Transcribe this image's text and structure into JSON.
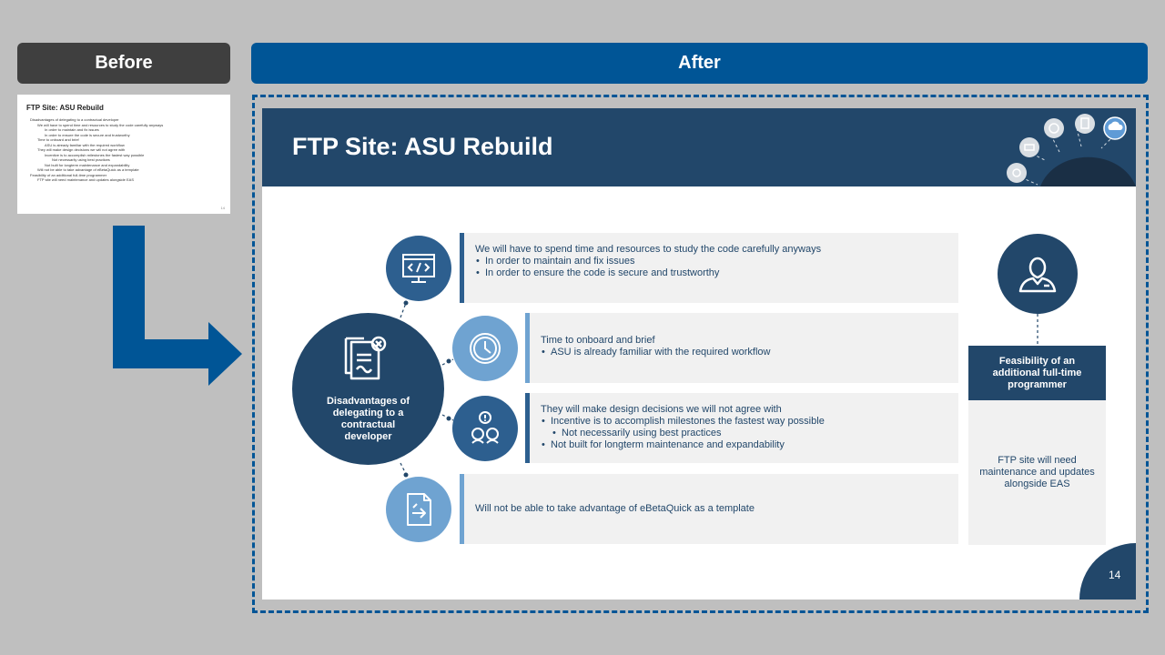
{
  "labels": {
    "before": "Before",
    "after": "After"
  },
  "thumbnail": {
    "title": "FTP Site: ASU Rebuild",
    "lines": [
      {
        "level": 1,
        "text": "Disadvantages of delegating to a contractual developer"
      },
      {
        "level": 2,
        "text": "We will have to spend time and resources to study the code carefully anyways"
      },
      {
        "level": 3,
        "text": "In order to maintain and fix issues"
      },
      {
        "level": 3,
        "text": "In order to ensure the code is secure and trustworthy"
      },
      {
        "level": 2,
        "text": "Time to onboard and brief"
      },
      {
        "level": 3,
        "text": "ASU is already familiar with the required workflow"
      },
      {
        "level": 2,
        "text": "They will make design decisions we will not agree with"
      },
      {
        "level": 3,
        "text": "Incentive is to accomplish milestones the fastest way possible"
      },
      {
        "level": 4,
        "text": "Not necessarily using best practices"
      },
      {
        "level": 3,
        "text": "Not built for longterm maintenance and expandability"
      },
      {
        "level": 2,
        "text": "Will not be able to take advantage of eBetaQuick as a template"
      },
      {
        "level": 1,
        "text": "Feasibility of an additional full-time programmer"
      },
      {
        "level": 2,
        "text": "FTP site will need maintenance and updates alongside EAS"
      }
    ],
    "page": "14"
  },
  "slide": {
    "title": "FTP Site: ASU Rebuild",
    "center": {
      "label": "Disadvantages of delegating to a contractual developer"
    },
    "items": [
      {
        "icon": "code-monitor-icon",
        "heading": "We will have to spend time and resources to study the code carefully anyways",
        "bullets": [
          "In order to maintain and fix issues",
          "In order to ensure the code is secure and trustworthy"
        ]
      },
      {
        "icon": "clock-icon",
        "heading": "Time to onboard and brief",
        "bullets": [
          "ASU is already familiar with the required workflow"
        ]
      },
      {
        "icon": "disagreement-people-icon",
        "heading": "They will make design decisions we will not agree with",
        "bullets": [
          "Incentive is to accomplish milestones the fastest way possible",
          "Not built for longterm maintenance and expandability"
        ],
        "sub_bullet": "Not necessarily using best practices"
      },
      {
        "icon": "document-template-icon",
        "heading": "Will not be able to take advantage of eBetaQuick as a template",
        "bullets": []
      }
    ],
    "right": {
      "icon": "programmer-icon",
      "label": "Feasibility of an additional full-time programmer",
      "body": "FTP site will need maintenance and updates alongside EAS"
    },
    "page_number": "14"
  },
  "colors": {
    "navy": "#22476a",
    "blue": "#005596",
    "mid_blue": "#2d5f8f",
    "light_blue": "#6fa3d1",
    "gray_box": "#f1f1f1"
  }
}
